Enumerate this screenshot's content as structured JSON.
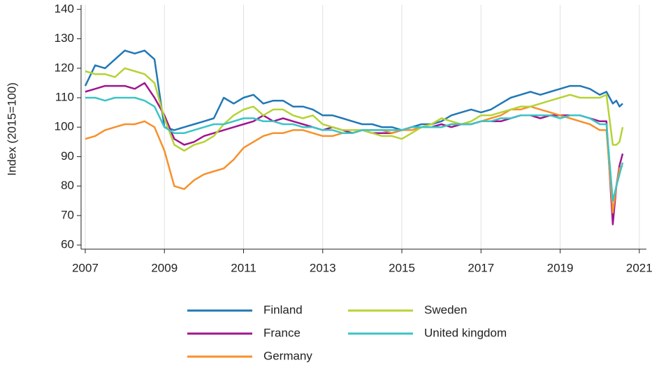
{
  "chart_data": {
    "type": "line",
    "y_label": "Index (2015=100)",
    "x": [
      2007,
      2007.25,
      2007.5,
      2007.75,
      2008,
      2008.25,
      2008.5,
      2008.75,
      2009,
      2009.25,
      2009.5,
      2009.75,
      2010,
      2010.25,
      2010.5,
      2010.75,
      2011,
      2011.25,
      2011.5,
      2011.75,
      2012,
      2012.25,
      2012.5,
      2012.75,
      2013,
      2013.25,
      2013.5,
      2013.75,
      2014,
      2014.25,
      2014.5,
      2014.75,
      2015,
      2015.25,
      2015.5,
      2015.75,
      2016,
      2016.25,
      2016.5,
      2016.75,
      2017,
      2017.25,
      2017.5,
      2017.75,
      2018,
      2018.25,
      2018.5,
      2018.75,
      2019,
      2019.25,
      2019.5,
      2019.75,
      2020,
      2020.17,
      2020.33,
      2020.42,
      2020.5,
      2020.58
    ],
    "series": [
      {
        "name": "Finland",
        "color": "#2278b5",
        "values": [
          114,
          121,
          120,
          123,
          126,
          125,
          126,
          123,
          100,
          99,
          100,
          101,
          102,
          103,
          110,
          108,
          110,
          111,
          108,
          109,
          109,
          107,
          107,
          106,
          104,
          104,
          103,
          102,
          101,
          101,
          100,
          100,
          99,
          100,
          101,
          101,
          102,
          104,
          105,
          106,
          105,
          106,
          108,
          110,
          111,
          112,
          111,
          112,
          113,
          114,
          114,
          113,
          111,
          112,
          108,
          109,
          107,
          108
        ]
      },
      {
        "name": "France",
        "color": "#a0158e",
        "values": [
          112,
          113,
          114,
          114,
          114,
          113,
          115,
          110,
          104,
          96,
          94,
          95,
          97,
          98,
          99,
          100,
          101,
          102,
          104,
          102,
          103,
          102,
          101,
          100,
          99,
          100,
          99,
          98,
          99,
          98,
          98,
          98,
          99,
          100,
          100,
          100,
          101,
          100,
          101,
          101,
          102,
          102,
          102,
          103,
          104,
          104,
          103,
          104,
          104,
          104,
          104,
          103,
          102,
          102,
          67,
          80,
          87,
          91
        ]
      },
      {
        "name": "Germany",
        "color": "#f7902b",
        "values": [
          96,
          97,
          99,
          100,
          101,
          101,
          102,
          100,
          92,
          80,
          79,
          82,
          84,
          85,
          86,
          89,
          93,
          95,
          97,
          98,
          98,
          99,
          99,
          98,
          97,
          97,
          98,
          98,
          99,
          99,
          99,
          98,
          99,
          99,
          100,
          100,
          100,
          101,
          101,
          101,
          102,
          103,
          104,
          106,
          106,
          107,
          106,
          105,
          104,
          103,
          102,
          101,
          99,
          99,
          71,
          80,
          86,
          87
        ]
      },
      {
        "name": "Sweden",
        "color": "#b5d334",
        "values": [
          119,
          118,
          118,
          117,
          120,
          119,
          118,
          115,
          103,
          94,
          92,
          94,
          95,
          97,
          101,
          104,
          106,
          107,
          104,
          106,
          106,
          104,
          103,
          104,
          101,
          100,
          99,
          99,
          99,
          98,
          97,
          97,
          96,
          98,
          100,
          101,
          103,
          102,
          101,
          102,
          104,
          104,
          105,
          106,
          107,
          107,
          108,
          109,
          110,
          111,
          110,
          110,
          110,
          111,
          94,
          94,
          95,
          100
        ]
      },
      {
        "name": "United kingdom",
        "color": "#3bc4c4",
        "values": [
          110,
          110,
          109,
          110,
          110,
          110,
          109,
          107,
          100,
          98,
          98,
          99,
          100,
          101,
          101,
          102,
          103,
          103,
          102,
          102,
          101,
          101,
          100,
          100,
          99,
          99,
          98,
          98,
          99,
          99,
          99,
          99,
          99,
          100,
          100,
          100,
          100,
          101,
          101,
          101,
          102,
          102,
          103,
          103,
          104,
          104,
          104,
          104,
          103,
          104,
          104,
          103,
          101,
          101,
          75,
          80,
          84,
          88
        ]
      }
    ],
    "xlim": [
      2006.894,
      2021.18
    ],
    "xticks": [
      2007,
      2009,
      2011,
      2013,
      2015,
      2017,
      2019,
      2021
    ],
    "ylim": [
      58.6,
      141.5
    ],
    "yticks": [
      60,
      70,
      80,
      90,
      100,
      110,
      120,
      130,
      140
    ],
    "grid": "x"
  }
}
